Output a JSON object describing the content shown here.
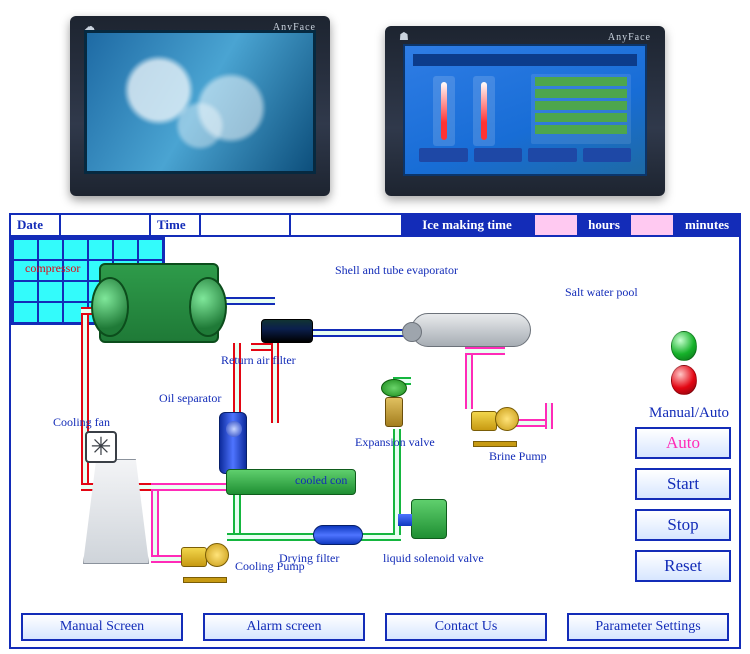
{
  "hmi_photo": {
    "brand": "AnyFace"
  },
  "top_bar": {
    "date_label": "Date",
    "date_value": "",
    "time_label": "Time",
    "time_value": "",
    "ice_label": "Ice making time",
    "hours_value": "",
    "hours_label": "hours",
    "minutes_value": "",
    "minutes_label": "minutes"
  },
  "labels": {
    "compressor": "compressor",
    "shell_evaporator": "Shell and tube evaporator",
    "salt_pool": "Salt water pool",
    "return_air_filter": "Return air filter",
    "oil_separator": "Oil separator",
    "expansion_valve": "Expansion valve",
    "brine_pump": "Brine Pump",
    "cooling_fan": "Cooling fan",
    "cooled_con": "cooled con",
    "drying_filter": "Drying filter",
    "liquid_solenoid": "liquid solenoid valve",
    "cooling_pump": "Cooling Pump",
    "manual_auto": "Manual/Auto"
  },
  "pool": {
    "rows": 4,
    "cols": 6,
    "cell_color": "#33fbfb"
  },
  "pipe_colors": {
    "red": "#e30613",
    "green": "#15b63f",
    "magenta": "#ff2bb8",
    "blue": "#132cb8"
  },
  "controls": {
    "auto": "Auto",
    "start": "Start",
    "stop": "Stop",
    "reset": "Reset"
  },
  "bottom": {
    "manual_screen": "Manual Screen",
    "alarm_screen": "Alarm screen",
    "contact_us": "Contact Us",
    "parameter_settings": "Parameter Settings"
  }
}
